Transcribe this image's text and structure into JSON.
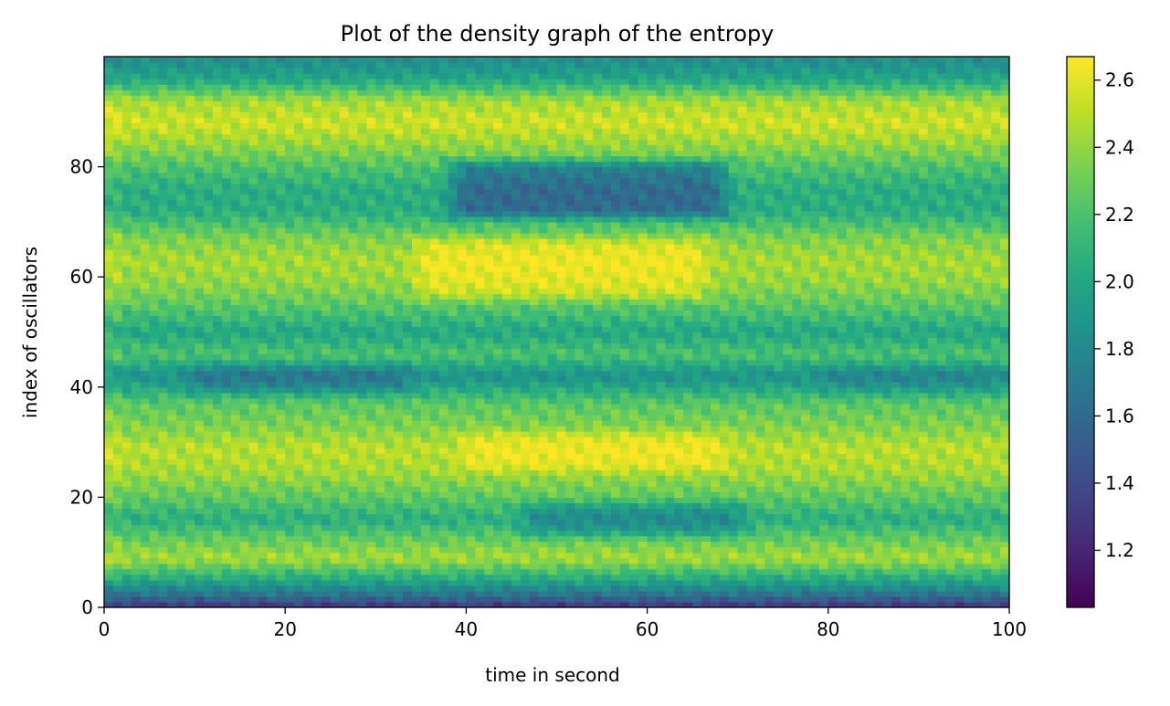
{
  "chart_data": {
    "type": "heatmap",
    "title": "Plot of the density graph of the entropy",
    "xlabel": "time in second",
    "ylabel": "index of oscillators",
    "xlim": [
      0,
      100
    ],
    "ylim": [
      0,
      100
    ],
    "x_ticks": [
      0,
      20,
      40,
      60,
      80,
      100
    ],
    "y_ticks": [
      0,
      20,
      40,
      60,
      80
    ],
    "colormap": "viridis",
    "colorbar": {
      "range": [
        1.03,
        2.67
      ],
      "ticks": [
        1.2,
        1.4,
        1.6,
        1.8,
        2.0,
        2.2,
        2.4,
        2.6
      ]
    },
    "rows": 100,
    "columns": 100,
    "grid": false,
    "legend": "colorbar on the right",
    "colors": {
      "viridis_low": "#440154",
      "viridis_mid": "#21918c",
      "viridis_high": "#fde725"
    },
    "z_estimate": {
      "y_profile": [
        {
          "y": 0,
          "z": 1.25
        },
        {
          "y": 2,
          "z": 1.6
        },
        {
          "y": 5,
          "z": 2.0
        },
        {
          "y": 9,
          "z": 2.45
        },
        {
          "y": 13,
          "z": 2.25
        },
        {
          "y": 16,
          "z": 2.05
        },
        {
          "y": 20,
          "z": 2.25
        },
        {
          "y": 25,
          "z": 2.45
        },
        {
          "y": 29,
          "z": 2.5
        },
        {
          "y": 33,
          "z": 2.35
        },
        {
          "y": 37,
          "z": 2.25
        },
        {
          "y": 42,
          "z": 1.85
        },
        {
          "y": 46,
          "z": 2.2
        },
        {
          "y": 50,
          "z": 2.0
        },
        {
          "y": 55,
          "z": 2.25
        },
        {
          "y": 59,
          "z": 2.4
        },
        {
          "y": 63,
          "z": 2.45
        },
        {
          "y": 67,
          "z": 2.35
        },
        {
          "y": 72,
          "z": 2.05
        },
        {
          "y": 76,
          "z": 2.05
        },
        {
          "y": 80,
          "z": 2.2
        },
        {
          "y": 84,
          "z": 2.4
        },
        {
          "y": 88,
          "z": 2.55
        },
        {
          "y": 92,
          "z": 2.45
        },
        {
          "y": 96,
          "z": 2.0
        },
        {
          "y": 99,
          "z": 1.85
        }
      ],
      "features": [
        {
          "x": [
            37,
            70
          ],
          "y": [
            70,
            82
          ],
          "dz": -0.45
        },
        {
          "x": [
            33,
            68
          ],
          "y": [
            55,
            68
          ],
          "dz": 0.2
        },
        {
          "x": [
            38,
            70
          ],
          "y": [
            24,
            33
          ],
          "dz": 0.15
        },
        {
          "x": [
            45,
            72
          ],
          "y": [
            12,
            20
          ],
          "dz": -0.25
        },
        {
          "x": [
            8,
            35
          ],
          "y": [
            38,
            45
          ],
          "dz": -0.2
        },
        {
          "x": [
            78,
            100
          ],
          "y": [
            38,
            45
          ],
          "dz": -0.1
        },
        {
          "x": [
            0,
            2
          ],
          "y": [
            5,
            95
          ],
          "dz": 0.3
        }
      ]
    }
  }
}
